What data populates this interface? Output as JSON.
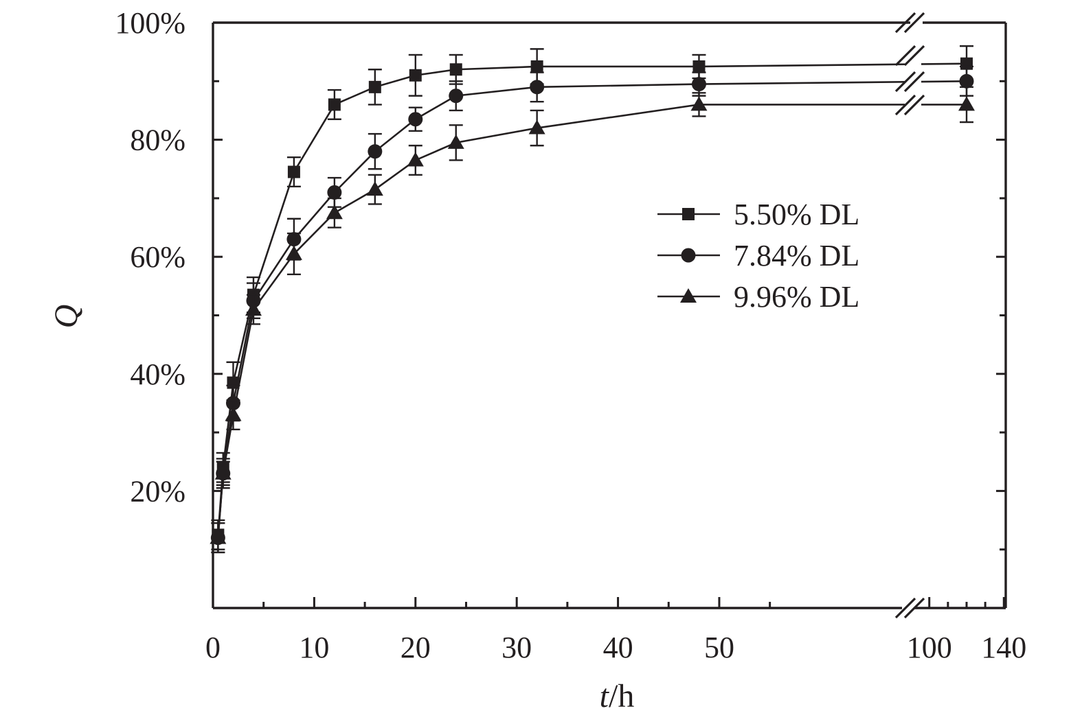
{
  "chart_data": {
    "type": "line",
    "title": "",
    "xlabel_italic": "t",
    "xlabel_rest": "/h",
    "ylabel": "Q",
    "ylim": [
      0,
      100
    ],
    "y_ticks": [
      20,
      40,
      60,
      80,
      100
    ],
    "y_tick_labels": [
      "20%",
      "40%",
      "60%",
      "80%",
      "100%"
    ],
    "x_broken_axis": true,
    "x_segment_1": {
      "range": [
        0,
        69
      ],
      "ticks": [
        0,
        10,
        20,
        30,
        40,
        50
      ],
      "tick_labels": [
        "0",
        "10",
        "20",
        "30",
        "40",
        "50"
      ]
    },
    "x_segment_2": {
      "range": [
        92,
        141
      ],
      "ticks": [
        100,
        140
      ],
      "tick_labels": [
        "100",
        "140"
      ]
    },
    "grid": false,
    "legend_position": "right",
    "series": [
      {
        "name": "5.50% DL",
        "marker": "square",
        "points": [
          {
            "x": 0.5,
            "y": 12.5,
            "err": 2.5
          },
          {
            "x": 1,
            "y": 24.0,
            "err": 2.5
          },
          {
            "x": 2,
            "y": 38.5,
            "err": 3.5
          },
          {
            "x": 4,
            "y": 53.5,
            "err": 3.0
          },
          {
            "x": 8,
            "y": 74.5,
            "err": 2.5
          },
          {
            "x": 12,
            "y": 86.0,
            "err": 2.5
          },
          {
            "x": 16,
            "y": 89.0,
            "err": 3.0
          },
          {
            "x": 20,
            "y": 91.0,
            "err": 3.5
          },
          {
            "x": 24,
            "y": 92.0,
            "err": 2.5
          },
          {
            "x": 32,
            "y": 92.5,
            "err": 3.0
          },
          {
            "x": 48,
            "y": 92.5,
            "err": 2.0
          },
          {
            "x": 120,
            "y": 93.0,
            "err": 3.0
          }
        ]
      },
      {
        "name": "7.84% DL",
        "marker": "circle",
        "points": [
          {
            "x": 0.5,
            "y": 12.0,
            "err": 2.5
          },
          {
            "x": 1,
            "y": 23.0,
            "err": 2.0
          },
          {
            "x": 2,
            "y": 35.0,
            "err": 3.0
          },
          {
            "x": 4,
            "y": 52.5,
            "err": 3.0
          },
          {
            "x": 8,
            "y": 63.0,
            "err": 3.5
          },
          {
            "x": 12,
            "y": 71.0,
            "err": 2.5
          },
          {
            "x": 16,
            "y": 78.0,
            "err": 3.0
          },
          {
            "x": 20,
            "y": 83.5,
            "err": 2.0
          },
          {
            "x": 24,
            "y": 87.5,
            "err": 2.5
          },
          {
            "x": 32,
            "y": 89.0,
            "err": 2.5
          },
          {
            "x": 48,
            "y": 89.5,
            "err": 2.0
          },
          {
            "x": 120,
            "y": 90.0,
            "err": 2.5
          }
        ]
      },
      {
        "name": "9.96% DL",
        "marker": "triangle",
        "points": [
          {
            "x": 0.5,
            "y": 12.0,
            "err": 2.5
          },
          {
            "x": 1,
            "y": 23.0,
            "err": 2.5
          },
          {
            "x": 2,
            "y": 33.0,
            "err": 2.5
          },
          {
            "x": 4,
            "y": 51.0,
            "err": 2.5
          },
          {
            "x": 8,
            "y": 60.5,
            "err": 3.5
          },
          {
            "x": 12,
            "y": 67.5,
            "err": 2.5
          },
          {
            "x": 16,
            "y": 71.5,
            "err": 2.5
          },
          {
            "x": 20,
            "y": 76.5,
            "err": 2.5
          },
          {
            "x": 24,
            "y": 79.5,
            "err": 3.0
          },
          {
            "x": 32,
            "y": 82.0,
            "err": 3.0
          },
          {
            "x": 48,
            "y": 86.0,
            "err": 2.0
          },
          {
            "x": 120,
            "y": 86.0,
            "err": 3.0
          }
        ]
      }
    ]
  },
  "colors": {
    "ink": "#231f20",
    "background": "#ffffff"
  }
}
